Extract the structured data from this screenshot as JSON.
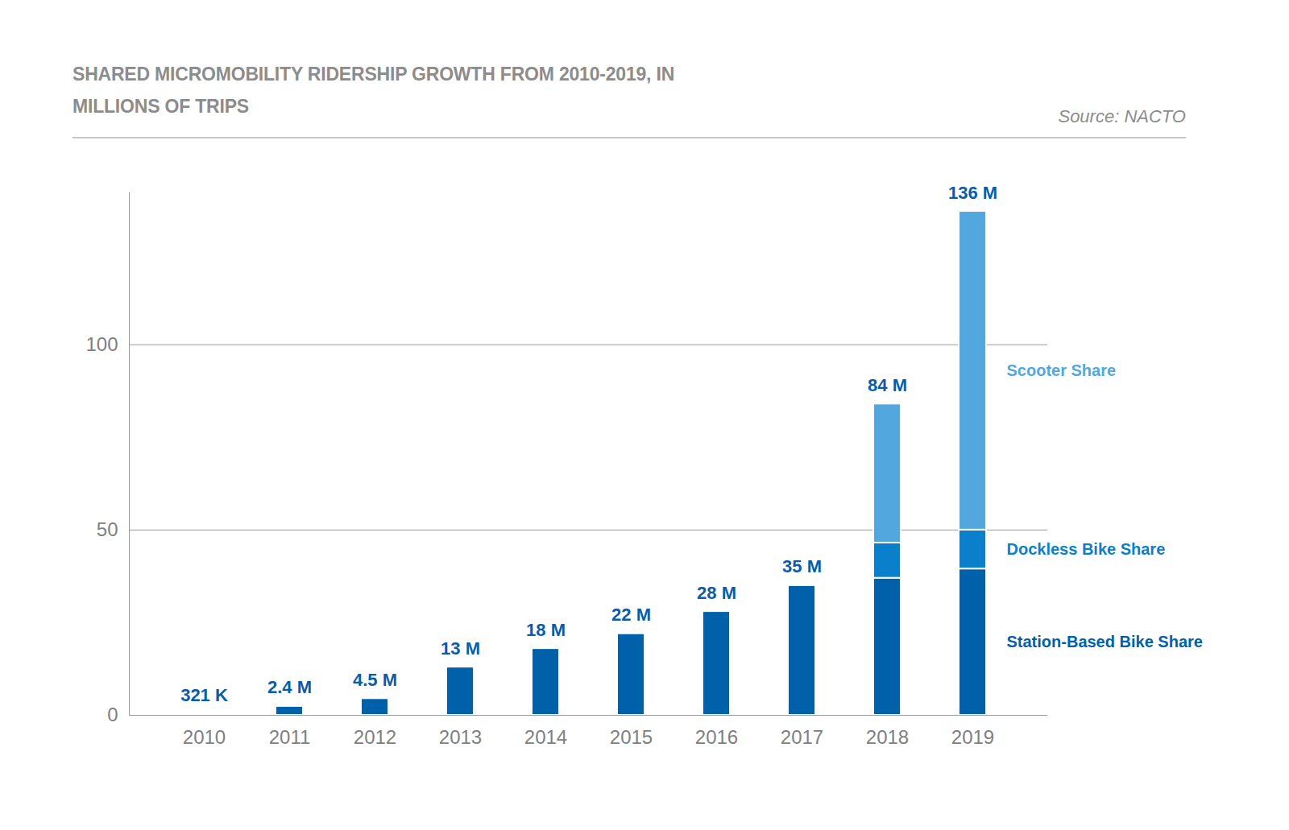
{
  "chart_data": {
    "type": "bar",
    "title": "SHARED MICROMOBILITY RIDERSHIP GROWTH FROM 2010-2019, IN MILLIONS OF TRIPS",
    "caption": "Source: NACTO",
    "stacked": true,
    "grid": true,
    "legend": "right",
    "categories": [
      2010,
      2011,
      2012,
      2013,
      2014,
      2015,
      2016,
      2017,
      2018,
      2019
    ],
    "series": [
      {
        "name": "Station-Based Bike Share",
        "color": "#0060a9",
        "values": [
          0.321,
          2.4,
          4.5,
          13,
          18,
          22,
          28,
          35,
          37,
          39.5
        ]
      },
      {
        "name": "Dockless Bike Share",
        "color": "#0a7fcc",
        "values": [
          null,
          null,
          null,
          null,
          null,
          null,
          null,
          null,
          9.5,
          10.5
        ]
      },
      {
        "name": "Scooter Share",
        "color": "#52a8de",
        "values": [
          null,
          null,
          null,
          null,
          null,
          null,
          null,
          null,
          37.5,
          86
        ]
      }
    ],
    "totals": [
      0.321,
      2.4,
      4.5,
      13,
      18,
      22,
      28,
      35,
      84,
      136
    ],
    "total_labels": [
      "321 K",
      "2.4 M",
      "4.5 M",
      "13 M",
      "18 M",
      "22 M",
      "28 M",
      "35 M",
      "84 M",
      "136 M"
    ],
    "ylim": [
      0,
      141
    ],
    "yticks": [
      0,
      50,
      100
    ]
  }
}
